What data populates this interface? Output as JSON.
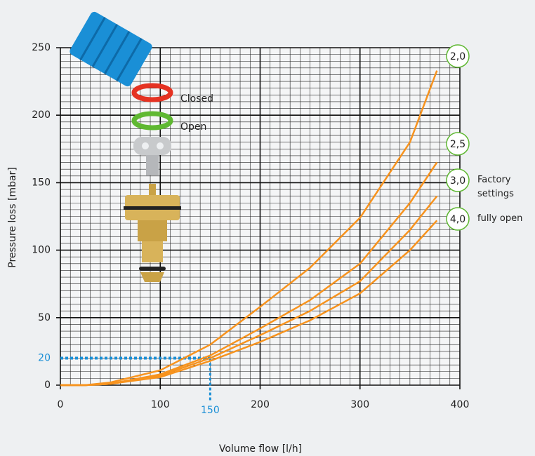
{
  "chart_data": {
    "type": "line",
    "x_label": "Volume flow [l/h]",
    "y_label": "Pressure loss [mbar]",
    "x": [
      0,
      25,
      50,
      100,
      150,
      200,
      250,
      300,
      350,
      377
    ],
    "series": [
      {
        "name": "2,0",
        "color": "#f7931e",
        "values": [
          0,
          0,
          2,
          11,
          30,
          58,
          87,
          124,
          180,
          233
        ]
      },
      {
        "name": "2,5",
        "color": "#f7931e",
        "values": [
          0,
          0,
          1,
          8,
          22,
          42,
          63,
          90,
          135,
          165
        ]
      },
      {
        "name": "3,0",
        "color": "#f7931e",
        "values": [
          0,
          0,
          1,
          7,
          20,
          37,
          55,
          77,
          115,
          140
        ]
      },
      {
        "name": "4,0",
        "color": "#f7931e",
        "values": [
          0,
          0,
          1,
          6,
          18,
          32,
          48,
          68,
          100,
          122
        ]
      }
    ],
    "xlim": [
      0,
      400
    ],
    "xticks": [
      0,
      100,
      200,
      300,
      400
    ],
    "ylim": [
      0,
      250
    ],
    "yticks": [
      0,
      50,
      100,
      150,
      200,
      250
    ],
    "grid": true,
    "reference": {
      "x": 150,
      "y": 20,
      "color": "#1a8fd6"
    },
    "annotations": [
      {
        "series": 2,
        "text": "Factory settings"
      },
      {
        "series": 3,
        "text": "fully open"
      }
    ],
    "key_labels": {
      "closed": "Closed",
      "open": "Open"
    }
  }
}
